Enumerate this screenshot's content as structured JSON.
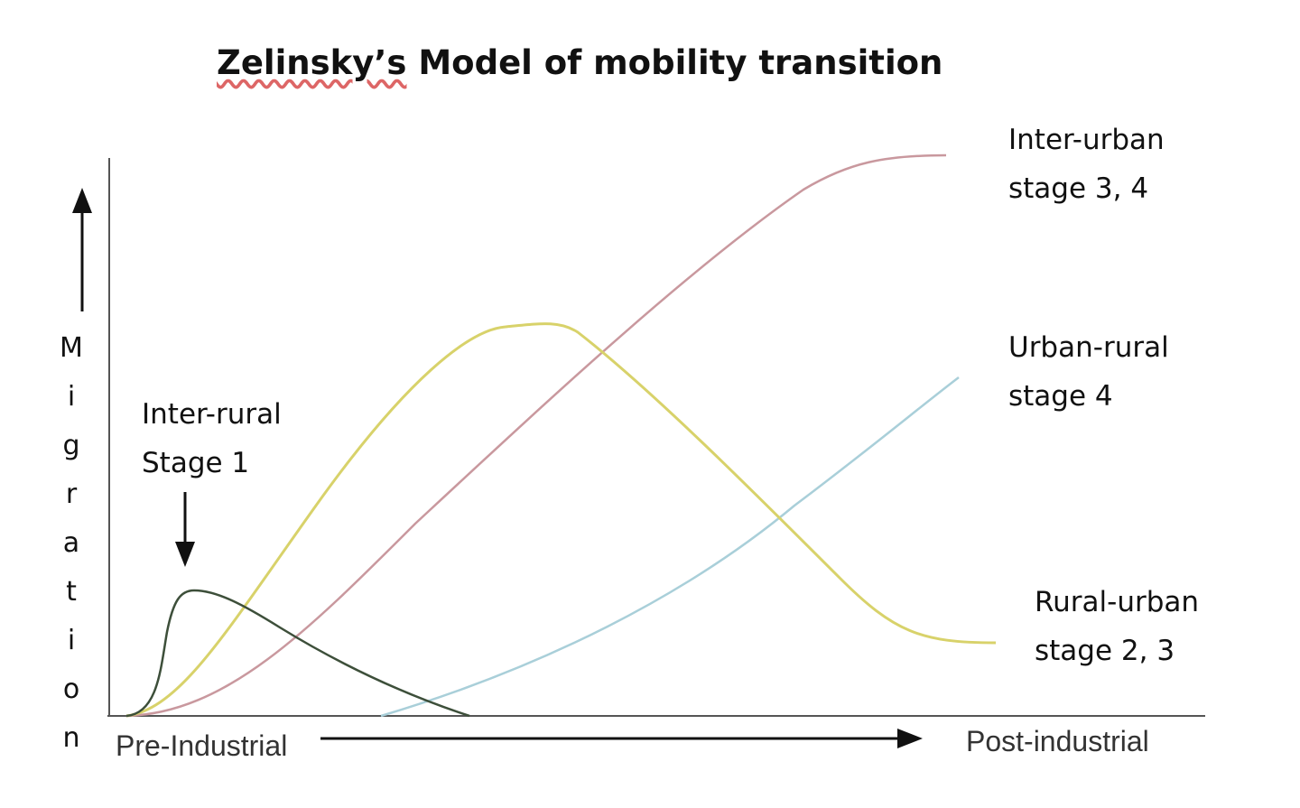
{
  "title_prefix": "Zelinsky’s",
  "title_rest": " Model of mobility transition",
  "y_axis_label": "Migration",
  "x_axis_start_label": "Pre-Industrial",
  "x_axis_end_label": "Post-industrial",
  "curves": [
    {
      "key": "inter_rural",
      "name_line1": "Inter-rural",
      "name_line2": "Stage 1",
      "color": "#3d4f3a"
    },
    {
      "key": "rural_urban",
      "name_line1": "Rural-urban",
      "name_line2": "stage 2, 3",
      "color": "#d8d26a"
    },
    {
      "key": "inter_urban",
      "name_line1": "Inter-urban",
      "name_line2": "stage 3, 4",
      "color": "#c9989e"
    },
    {
      "key": "urban_rural",
      "name_line1": "Urban-rural",
      "name_line2": "stage 4",
      "color": "#a9cfd9"
    }
  ]
}
